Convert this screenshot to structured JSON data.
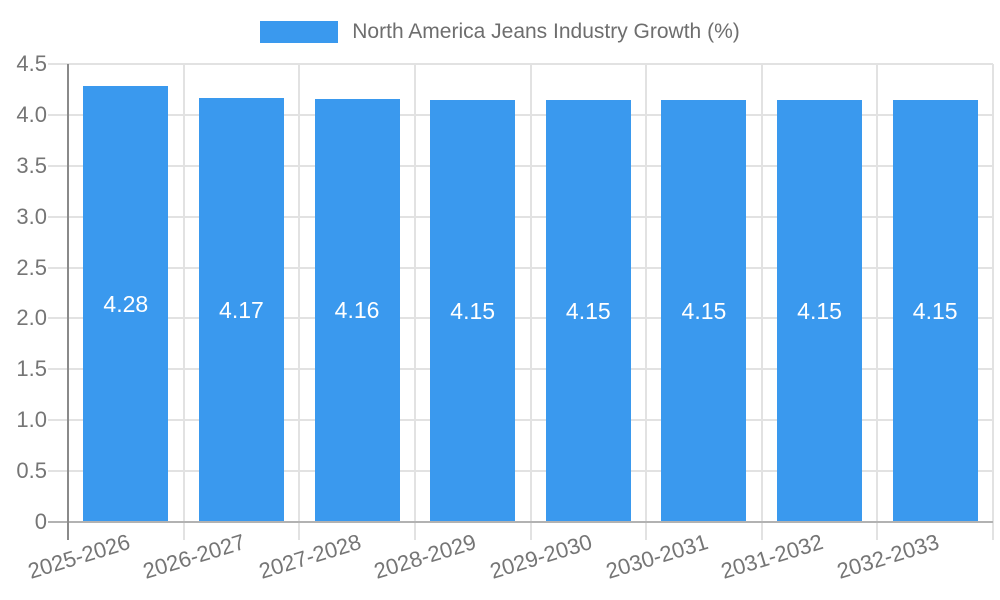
{
  "chart_data": {
    "type": "bar",
    "title": "North America Jeans Industry Growth (%)",
    "series_name": "North America Jeans Industry Growth (%)",
    "categories": [
      "2025-2026",
      "2026-2027",
      "2027-2028",
      "2028-2029",
      "2029-2030",
      "2030-2031",
      "2031-2032",
      "2032-2033"
    ],
    "values": [
      4.28,
      4.17,
      4.16,
      4.15,
      4.15,
      4.15,
      4.15,
      4.15
    ],
    "bar_labels": [
      "4.28",
      "4.17",
      "4.16",
      "4.15",
      "4.15",
      "4.15",
      "4.15",
      "4.15"
    ],
    "xlabel": "",
    "ylabel": "",
    "ylim": [
      0,
      4.5
    ],
    "ytick_values": [
      0,
      0.5,
      1.0,
      1.5,
      2.0,
      2.5,
      3.0,
      3.5,
      4.0,
      4.5
    ],
    "ytick_labels": [
      "0",
      "0.5",
      "1.0",
      "1.5",
      "2.0",
      "2.5",
      "3.0",
      "3.5",
      "4.0",
      "4.5"
    ],
    "grid": true,
    "legend_position": "top",
    "xtick_rotation_deg": -17
  },
  "style": {
    "bar_color": "#3a99ee",
    "bar_label_color": "#ffffff",
    "grid_color": "#e2e2e2",
    "yaxis_line_color": "#8a8a8a",
    "baseline_color": "#b2b2b2",
    "tick_text_color": "#757575",
    "legend_text_color": "#6e6e6e",
    "background": "#ffffff"
  }
}
